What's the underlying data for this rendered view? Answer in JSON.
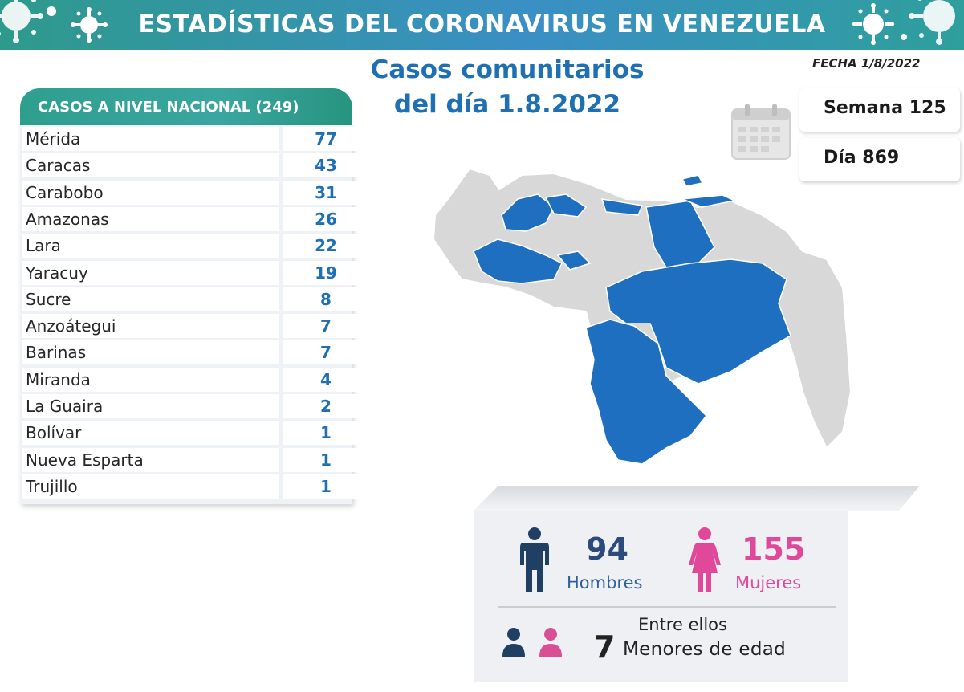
{
  "header": {
    "title": "ESTADÍSTICAS DEL CORONAVIRUS EN VENEZUELA"
  },
  "fecha": "FECHA 1/8/2022",
  "main_title": {
    "line1": "Casos comunitarios",
    "line2": "del día 1.8.2022"
  },
  "table": {
    "header": "CASOS A NIVEL NACIONAL  (249)",
    "rows": [
      {
        "name": "Mérida",
        "value": "77"
      },
      {
        "name": "Caracas",
        "value": "43"
      },
      {
        "name": "Carabobo",
        "value": "31"
      },
      {
        "name": "Amazonas",
        "value": "26"
      },
      {
        "name": "Lara",
        "value": "22"
      },
      {
        "name": "Yaracuy",
        "value": "19"
      },
      {
        "name": "Sucre",
        "value": "8"
      },
      {
        "name": "Anzoátegui",
        "value": "7"
      },
      {
        "name": "Barinas",
        "value": "7"
      },
      {
        "name": "Miranda",
        "value": "4"
      },
      {
        "name": "La Guaira",
        "value": "2"
      },
      {
        "name": "Bolívar",
        "value": "1"
      },
      {
        "name": "Nueva Esparta",
        "value": "1"
      },
      {
        "name": "Trujillo",
        "value": "1"
      }
    ]
  },
  "semana": "Semana 125",
  "dia": "Día 869",
  "gender": {
    "hombres_count": "94",
    "hombres_label": "Hombres",
    "mujeres_count": "155",
    "mujeres_label": "Mujeres"
  },
  "minors": {
    "entre": "Entre ellos",
    "count": "7",
    "label": "Menores de edad"
  },
  "colors": {
    "blue": "#1f6fb3",
    "teal": "#2e9f8e",
    "pink": "#e0489a",
    "navy": "#1f3f63",
    "map_blue": "#1f6fc0",
    "map_grey": "#d8d8d8"
  },
  "icons": [
    "virus-icon",
    "calendar-icon",
    "man-icon",
    "woman-icon",
    "child-icons"
  ]
}
